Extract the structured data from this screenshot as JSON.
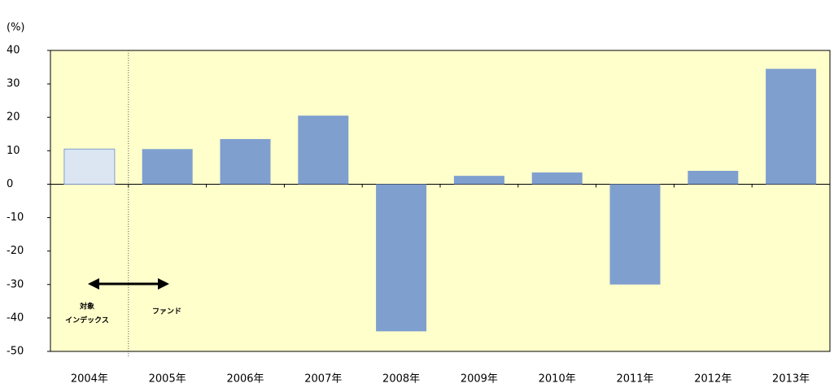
{
  "chart_data": {
    "type": "bar",
    "y_label": "(%)",
    "categories": [
      "2004年",
      "2005年",
      "2006年",
      "2007年",
      "2008年",
      "2009年",
      "2010年",
      "2011年",
      "2012年",
      "2013年"
    ],
    "values": [
      10.5,
      10.5,
      13.5,
      20.5,
      -44,
      2.5,
      3.5,
      -30,
      4,
      34.5
    ],
    "colors": [
      "#dce6f2",
      "#7f9fcf",
      "#7f9fcf",
      "#7f9fcf",
      "#7f9fcf",
      "#7f9fcf",
      "#7f9fcf",
      "#7f9fcf",
      "#7f9fcf",
      "#7f9fcf"
    ],
    "ylim": [
      -50,
      40
    ],
    "yticks": [
      40,
      30,
      20,
      10,
      0,
      -10,
      -20,
      -30,
      -40,
      -50
    ],
    "annotations": {
      "index_label": [
        "対象",
        "インデックス"
      ],
      "fund_label": "ファンド"
    }
  }
}
